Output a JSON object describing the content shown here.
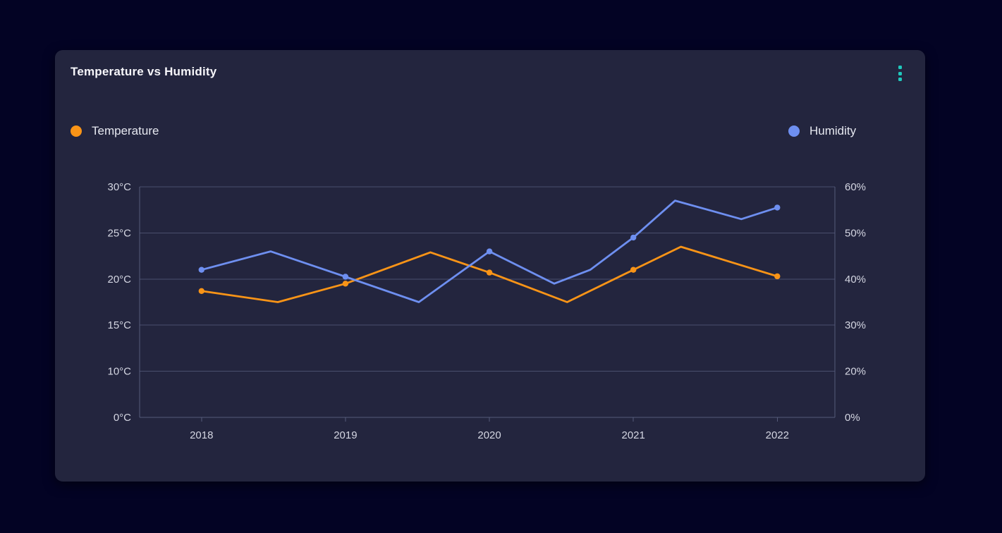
{
  "page": {
    "background": "#030324"
  },
  "card": {
    "title": "Temperature vs Humidity",
    "background": "#23253E",
    "menu_icon": "kebab-menu",
    "menu_dots_color": "#1FC8BC"
  },
  "legend": {
    "temperature": {
      "label": "Temperature",
      "color": "#F99417"
    },
    "humidity": {
      "label": "Humidity",
      "color": "#6E8FF0"
    }
  },
  "chart_data": {
    "type": "line",
    "title": "Temperature vs Humidity",
    "legend_position": "top",
    "x_axis": {
      "tick_labels": [
        "2018",
        "2019",
        "2020",
        "2021",
        "2022"
      ],
      "range_years": [
        2017.57,
        2022.4
      ]
    },
    "left_axis": {
      "unit": "°C",
      "tick_values": [
        0,
        10,
        15,
        20,
        25,
        30
      ],
      "tick_labels": [
        "0°C",
        "10°C",
        "15°C",
        "20°C",
        "25°C",
        "30°C"
      ]
    },
    "right_axis": {
      "unit": "%",
      "tick_values": [
        0,
        20,
        30,
        40,
        50,
        60
      ],
      "tick_labels": [
        "0%",
        "20%",
        "30%",
        "40%",
        "50%",
        "60%"
      ]
    },
    "grid": {
      "show": true,
      "line_color": "#4A4F6D",
      "border_color": "#565B7A",
      "axis_text_color": "#D4D6E2"
    },
    "series": [
      {
        "name": "Temperature",
        "axis": "left",
        "color": "#F99417",
        "marker_years": [
          2018,
          2019,
          2020,
          2021,
          2022
        ],
        "points": [
          [
            2018.0,
            18.7
          ],
          [
            2018.53,
            17.5
          ],
          [
            2019.0,
            19.5
          ],
          [
            2019.59,
            22.9
          ],
          [
            2020.0,
            20.7
          ],
          [
            2020.54,
            17.5
          ],
          [
            2021.0,
            21.0
          ],
          [
            2021.33,
            23.5
          ],
          [
            2022.0,
            20.3
          ]
        ]
      },
      {
        "name": "Humidity",
        "axis": "right",
        "color": "#6E8FF0",
        "marker_years": [
          2018,
          2019,
          2020,
          2021,
          2022
        ],
        "points": [
          [
            2018.0,
            42
          ],
          [
            2018.48,
            46
          ],
          [
            2019.0,
            40.5
          ],
          [
            2019.51,
            35
          ],
          [
            2020.0,
            46
          ],
          [
            2020.45,
            39
          ],
          [
            2020.7,
            42
          ],
          [
            2021.0,
            49
          ],
          [
            2021.29,
            57
          ],
          [
            2021.75,
            53
          ],
          [
            2022.0,
            55.5
          ]
        ]
      }
    ]
  }
}
